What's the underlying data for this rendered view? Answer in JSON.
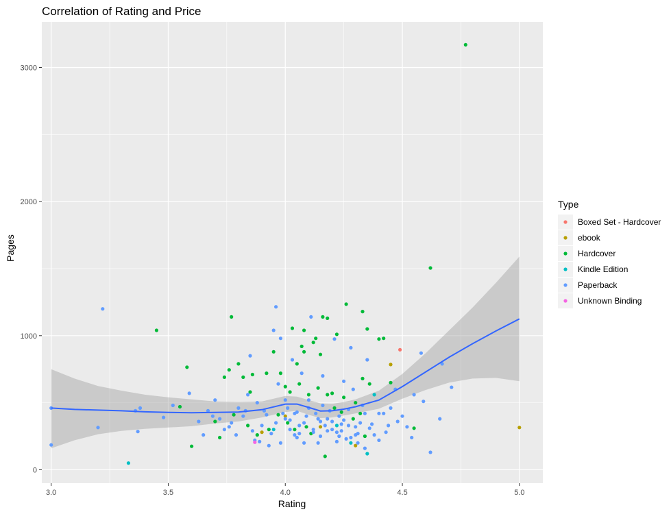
{
  "chart_data": {
    "type": "scatter",
    "title": "Correlation of Rating and Price",
    "xlabel": "Rating",
    "ylabel": "Pages",
    "xlim": [
      2.96,
      5.1
    ],
    "ylim": [
      -100,
      3340
    ],
    "x_ticks": [
      3.0,
      3.5,
      4.0,
      4.5,
      5.0
    ],
    "x_tick_labels": [
      "3.0",
      "3.5",
      "4.0",
      "4.5",
      "5.0"
    ],
    "y_ticks": [
      0,
      1000,
      2000,
      3000
    ],
    "y_tick_labels": [
      "0",
      "1000",
      "2000",
      "3000"
    ],
    "grid": true,
    "legend_position": "right",
    "legend": {
      "title": "Type",
      "entries": [
        {
          "label": "Boxed Set - Hardcover",
          "color": "#F8766D"
        },
        {
          "label": "ebook",
          "color": "#B79F00"
        },
        {
          "label": "Hardcover",
          "color": "#00BA38"
        },
        {
          "label": "Kindle Edition",
          "color": "#00BFC4"
        },
        {
          "label": "Paperback",
          "color": "#619CFF"
        },
        {
          "label": "Unknown Binding",
          "color": "#F564E3"
        }
      ]
    },
    "series": [
      {
        "name": "Boxed Set - Hardcover",
        "color": "#F8766D",
        "points": [
          [
            4.49,
            895
          ]
        ]
      },
      {
        "name": "ebook",
        "color": "#B79F00",
        "points": [
          [
            4.45,
            785
          ],
          [
            5.0,
            315
          ],
          [
            4.3,
            180
          ],
          [
            3.9,
            280
          ],
          [
            4.15,
            320
          ],
          [
            4.0,
            400
          ]
        ]
      },
      {
        "name": "Hardcover",
        "color": "#00BA38",
        "points": [
          [
            4.77,
            3170
          ],
          [
            4.62,
            1505
          ],
          [
            3.45,
            1040
          ],
          [
            3.58,
            765
          ],
          [
            3.6,
            175
          ],
          [
            3.55,
            470
          ],
          [
            3.77,
            1140
          ],
          [
            3.76,
            745
          ],
          [
            3.86,
            710
          ],
          [
            3.82,
            690
          ],
          [
            3.85,
            580
          ],
          [
            3.92,
            720
          ],
          [
            3.95,
            880
          ],
          [
            4.03,
            1055
          ],
          [
            4.08,
            1040
          ],
          [
            4.13,
            980
          ],
          [
            4.16,
            1140
          ],
          [
            4.18,
            1130
          ],
          [
            4.26,
            1235
          ],
          [
            4.33,
            1180
          ],
          [
            4.35,
            1050
          ],
          [
            4.4,
            975
          ],
          [
            4.42,
            980
          ],
          [
            4.22,
            1010
          ],
          [
            4.15,
            860
          ],
          [
            4.12,
            950
          ],
          [
            4.08,
            880
          ],
          [
            4.05,
            790
          ],
          [
            4.0,
            620
          ],
          [
            4.02,
            580
          ],
          [
            4.06,
            640
          ],
          [
            4.1,
            560
          ],
          [
            4.14,
            610
          ],
          [
            4.2,
            570
          ],
          [
            4.25,
            540
          ],
          [
            4.3,
            500
          ],
          [
            4.33,
            680
          ],
          [
            4.36,
            640
          ],
          [
            4.45,
            650
          ],
          [
            4.55,
            310
          ],
          [
            3.8,
            790
          ],
          [
            3.74,
            690
          ],
          [
            3.7,
            360
          ],
          [
            3.72,
            240
          ],
          [
            3.78,
            410
          ],
          [
            3.84,
            330
          ],
          [
            3.88,
            260
          ],
          [
            3.93,
            300
          ],
          [
            3.97,
            410
          ],
          [
            4.01,
            350
          ],
          [
            4.04,
            300
          ],
          [
            4.09,
            320
          ],
          [
            4.11,
            270
          ],
          [
            4.17,
            100
          ],
          [
            4.21,
            460
          ],
          [
            4.24,
            430
          ],
          [
            4.29,
            380
          ],
          [
            4.32,
            420
          ],
          [
            4.34,
            250
          ],
          [
            3.98,
            720
          ],
          [
            4.07,
            920
          ],
          [
            4.18,
            560
          ]
        ]
      },
      {
        "name": "Kindle Edition",
        "color": "#00BFC4",
        "points": [
          [
            3.33,
            50
          ],
          [
            4.35,
            120
          ],
          [
            4.28,
            200
          ],
          [
            4.38,
            560
          ],
          [
            3.95,
            300
          ],
          [
            4.22,
            330
          ]
        ]
      },
      {
        "name": "Paperback",
        "color": "#619CFF",
        "points": [
          [
            3.0,
            460
          ],
          [
            3.0,
            185
          ],
          [
            3.2,
            315
          ],
          [
            3.22,
            1200
          ],
          [
            3.37,
            285
          ],
          [
            3.38,
            460
          ],
          [
            3.48,
            390
          ],
          [
            3.52,
            480
          ],
          [
            3.59,
            570
          ],
          [
            3.65,
            260
          ],
          [
            3.67,
            440
          ],
          [
            3.7,
            520
          ],
          [
            3.72,
            380
          ],
          [
            3.74,
            300
          ],
          [
            3.77,
            350
          ],
          [
            3.79,
            260
          ],
          [
            3.8,
            460
          ],
          [
            3.82,
            400
          ],
          [
            3.84,
            560
          ],
          [
            3.85,
            850
          ],
          [
            3.87,
            220
          ],
          [
            3.88,
            500
          ],
          [
            3.9,
            330
          ],
          [
            3.91,
            440
          ],
          [
            3.93,
            180
          ],
          [
            3.95,
            1040
          ],
          [
            3.96,
            1215
          ],
          [
            3.97,
            640
          ],
          [
            3.98,
            980
          ],
          [
            3.99,
            420
          ],
          [
            4.0,
            520
          ],
          [
            4.01,
            460
          ],
          [
            4.02,
            370
          ],
          [
            4.03,
            820
          ],
          [
            4.04,
            260
          ],
          [
            4.05,
            430
          ],
          [
            4.06,
            330
          ],
          [
            4.07,
            720
          ],
          [
            4.08,
            200
          ],
          [
            4.09,
            400
          ],
          [
            4.1,
            460
          ],
          [
            4.11,
            1140
          ],
          [
            4.12,
            300
          ],
          [
            4.13,
            420
          ],
          [
            4.14,
            380
          ],
          [
            4.15,
            250
          ],
          [
            4.16,
            700
          ],
          [
            4.17,
            330
          ],
          [
            4.18,
            290
          ],
          [
            4.19,
            440
          ],
          [
            4.2,
            360
          ],
          [
            4.21,
            975
          ],
          [
            4.22,
            280
          ],
          [
            4.23,
            400
          ],
          [
            4.24,
            340
          ],
          [
            4.25,
            660
          ],
          [
            4.26,
            230
          ],
          [
            4.27,
            450
          ],
          [
            4.28,
            910
          ],
          [
            4.29,
            600
          ],
          [
            4.3,
            320
          ],
          [
            4.31,
            270
          ],
          [
            4.32,
            350
          ],
          [
            4.33,
            480
          ],
          [
            4.34,
            420
          ],
          [
            4.35,
            820
          ],
          [
            4.36,
            310
          ],
          [
            4.38,
            260
          ],
          [
            4.4,
            220
          ],
          [
            4.42,
            420
          ],
          [
            4.44,
            330
          ],
          [
            4.47,
            600
          ],
          [
            4.5,
            400
          ],
          [
            4.52,
            320
          ],
          [
            4.54,
            240
          ],
          [
            4.58,
            870
          ],
          [
            4.62,
            130
          ],
          [
            4.66,
            380
          ],
          [
            4.67,
            790
          ],
          [
            4.71,
            615
          ],
          [
            4.0,
            380
          ],
          [
            4.05,
            240
          ],
          [
            4.1,
            520
          ],
          [
            4.15,
            360
          ],
          [
            4.2,
            300
          ],
          [
            4.25,
            370
          ],
          [
            4.3,
            260
          ],
          [
            3.92,
            410
          ],
          [
            3.94,
            270
          ],
          [
            4.02,
            300
          ],
          [
            4.08,
            350
          ],
          [
            4.12,
            280
          ],
          [
            4.18,
            380
          ],
          [
            4.23,
            250
          ],
          [
            4.27,
            330
          ],
          [
            4.31,
            200
          ],
          [
            4.37,
            340
          ],
          [
            4.43,
            280
          ],
          [
            4.48,
            360
          ],
          [
            3.86,
            290
          ],
          [
            3.83,
            440
          ],
          [
            3.89,
            210
          ],
          [
            3.96,
            350
          ],
          [
            4.04,
            420
          ],
          [
            4.14,
            200
          ],
          [
            4.22,
            210
          ],
          [
            4.28,
            240
          ],
          [
            3.76,
            320
          ],
          [
            3.69,
            400
          ],
          [
            3.63,
            360
          ],
          [
            4.55,
            560
          ],
          [
            4.59,
            510
          ],
          [
            3.36,
            440
          ],
          [
            4.06,
            270
          ],
          [
            4.16,
            480
          ],
          [
            4.24,
            290
          ],
          [
            4.34,
            160
          ],
          [
            4.4,
            420
          ],
          [
            4.45,
            460
          ],
          [
            3.98,
            200
          ]
        ]
      },
      {
        "name": "Unknown Binding",
        "color": "#F564E3",
        "points": [
          [
            3.87,
            205
          ]
        ]
      }
    ],
    "smooth": {
      "label": "loess",
      "color": "#3366FF",
      "band_color": "#999999",
      "x": [
        3.0,
        3.1,
        3.2,
        3.3,
        3.4,
        3.5,
        3.6,
        3.7,
        3.8,
        3.9,
        4.0,
        4.05,
        4.1,
        4.15,
        4.2,
        4.25,
        4.3,
        4.4,
        4.5,
        4.6,
        4.7,
        4.8,
        4.9,
        5.0
      ],
      "y": [
        460,
        450,
        445,
        440,
        432,
        428,
        425,
        428,
        430,
        448,
        490,
        490,
        465,
        438,
        440,
        452,
        470,
        520,
        620,
        730,
        840,
        940,
        1035,
        1125
      ],
      "lower": [
        160,
        220,
        265,
        290,
        305,
        315,
        325,
        345,
        360,
        390,
        430,
        440,
        410,
        385,
        390,
        405,
        420,
        455,
        530,
        595,
        650,
        680,
        685,
        660
      ],
      "upper": [
        750,
        680,
        625,
        590,
        560,
        540,
        525,
        510,
        505,
        510,
        550,
        545,
        520,
        495,
        492,
        505,
        525,
        590,
        715,
        870,
        1040,
        1210,
        1395,
        1590
      ]
    }
  }
}
